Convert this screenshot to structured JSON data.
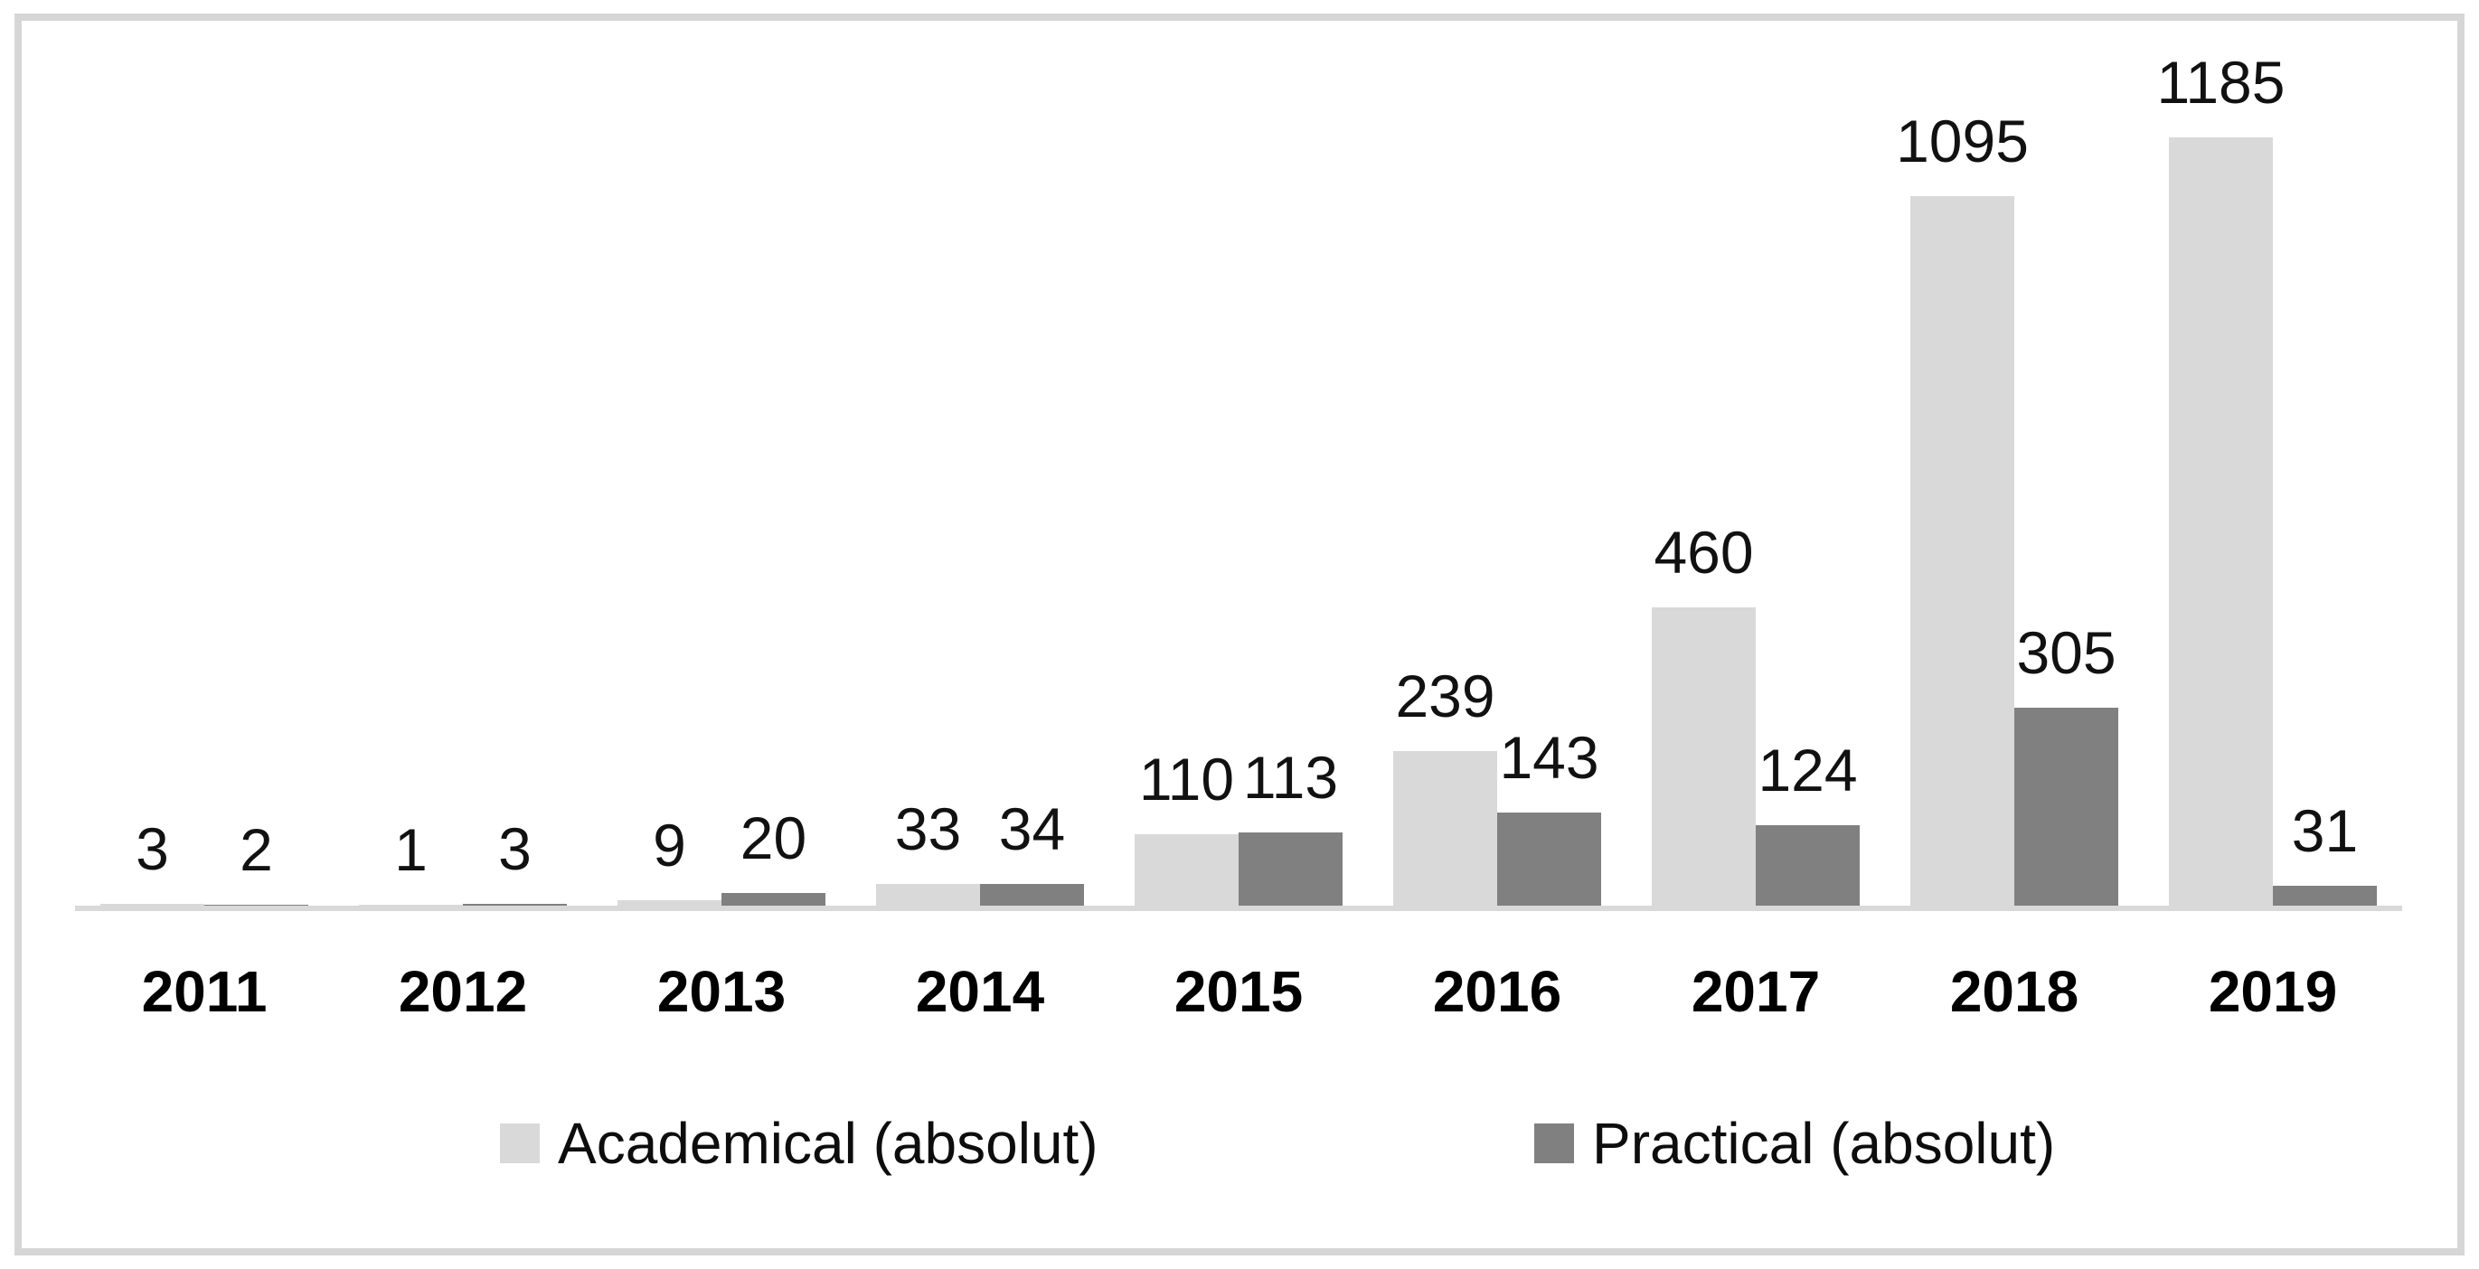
{
  "chart_data": {
    "type": "bar",
    "title": "",
    "xlabel": "",
    "ylabel": "",
    "categories": [
      "2011",
      "2012",
      "2013",
      "2014",
      "2015",
      "2016",
      "2017",
      "2018",
      "2019"
    ],
    "series": [
      {
        "name": "Academical (absolut)",
        "color": "#d9d9d9",
        "values": [
          3,
          1,
          9,
          33,
          110,
          239,
          460,
          1095,
          1185
        ]
      },
      {
        "name": "Practical (absolut)",
        "color": "#808080",
        "values": [
          2,
          3,
          20,
          34,
          113,
          143,
          124,
          305,
          31
        ]
      }
    ],
    "ylim": [
      0,
      1300
    ],
    "grid": false,
    "y_axis_visible": false,
    "data_labels": "outside-end",
    "legend_position": "bottom"
  },
  "colors": {
    "academical": "#d9d9d9",
    "practical": "#808080",
    "axis_line": "#d9d9d9",
    "frame_border": "#d6d6d6",
    "value_label": "#111111",
    "year_label": "#000000"
  }
}
